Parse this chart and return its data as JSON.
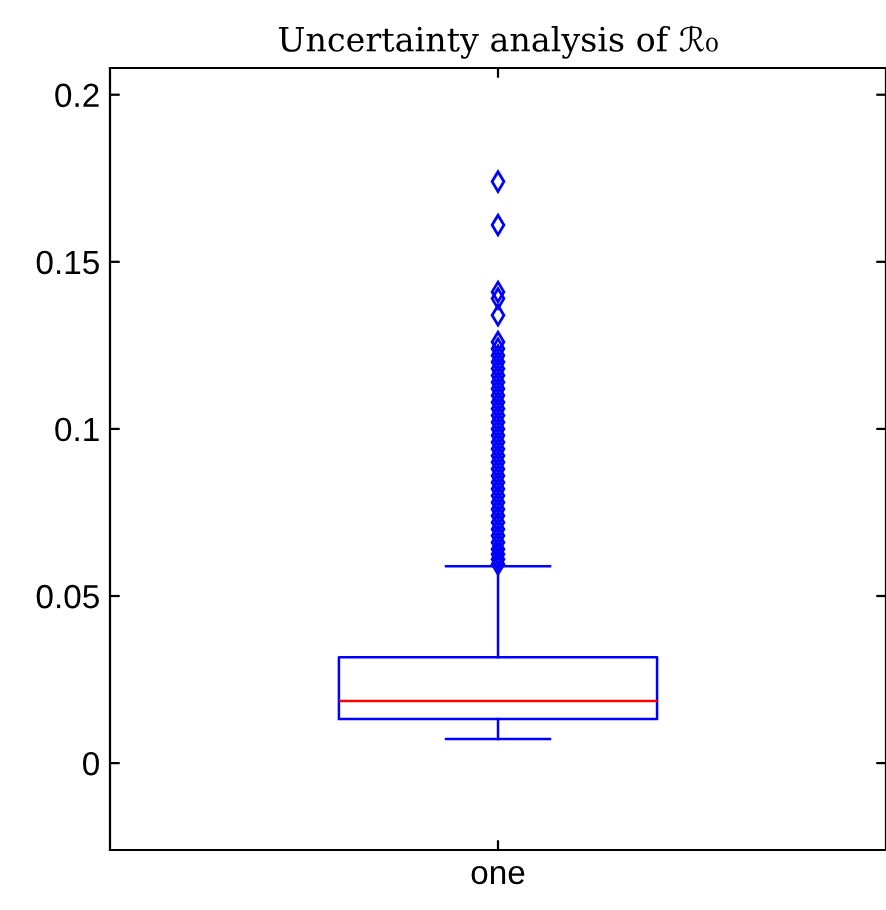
{
  "chart_data": {
    "type": "box",
    "title": "Uncertainty analysis of ℛ₀",
    "categories": [
      "one"
    ],
    "boxes": [
      {
        "low": 0.0072,
        "q1": 0.0132,
        "median": 0.0186,
        "q3": 0.0317,
        "high": 0.0589,
        "outliers": [
          0.0595,
          0.061,
          0.0625,
          0.064,
          0.066,
          0.068,
          0.07,
          0.072,
          0.074,
          0.076,
          0.078,
          0.08,
          0.082,
          0.084,
          0.086,
          0.088,
          0.09,
          0.092,
          0.094,
          0.096,
          0.098,
          0.1,
          0.102,
          0.104,
          0.106,
          0.108,
          0.11,
          0.112,
          0.114,
          0.116,
          0.118,
          0.12,
          0.122,
          0.124,
          0.126,
          0.134,
          0.139,
          0.141,
          0.161,
          0.174
        ]
      }
    ],
    "color": "#0000ff",
    "marker": "diamond",
    "ylim": [
      -0.026,
      0.208
    ],
    "yticks": [
      0,
      0.05,
      0.1,
      0.15,
      0.2
    ],
    "grid": false
  }
}
